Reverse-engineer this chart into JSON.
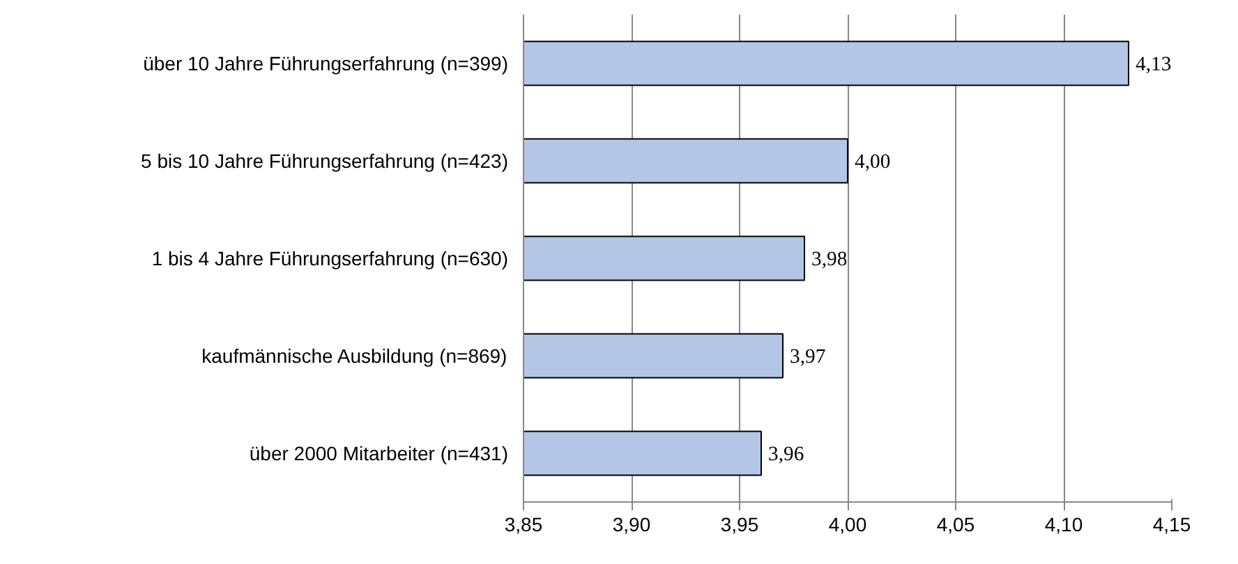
{
  "chart_data": {
    "type": "bar",
    "orientation": "horizontal",
    "categories": [
      "über 10 Jahre Führungserfahrung (n=399)",
      "5 bis 10 Jahre Führungserfahrung (n=423)",
      "1 bis 4 Jahre Führungserfahrung (n=630)",
      "kaufmännische Ausbildung (n=869)",
      "über 2000 Mitarbeiter (n=431)"
    ],
    "values": [
      4.13,
      4.0,
      3.98,
      3.97,
      3.96
    ],
    "value_labels": [
      "4,13",
      "4,00",
      "3,98",
      "3,97",
      "3,96"
    ],
    "color": "#b3c6e6",
    "xlim": [
      3.85,
      4.15
    ],
    "xticks": [
      {
        "value": 3.85,
        "label": "3,85"
      },
      {
        "value": 3.9,
        "label": "3,90"
      },
      {
        "value": 3.95,
        "label": "3,95"
      },
      {
        "value": 4.0,
        "label": "4,00"
      },
      {
        "value": 4.05,
        "label": "4,05"
      },
      {
        "value": 4.1,
        "label": "4,10"
      },
      {
        "value": 4.15,
        "label": "4,15"
      }
    ],
    "grid": "x"
  }
}
